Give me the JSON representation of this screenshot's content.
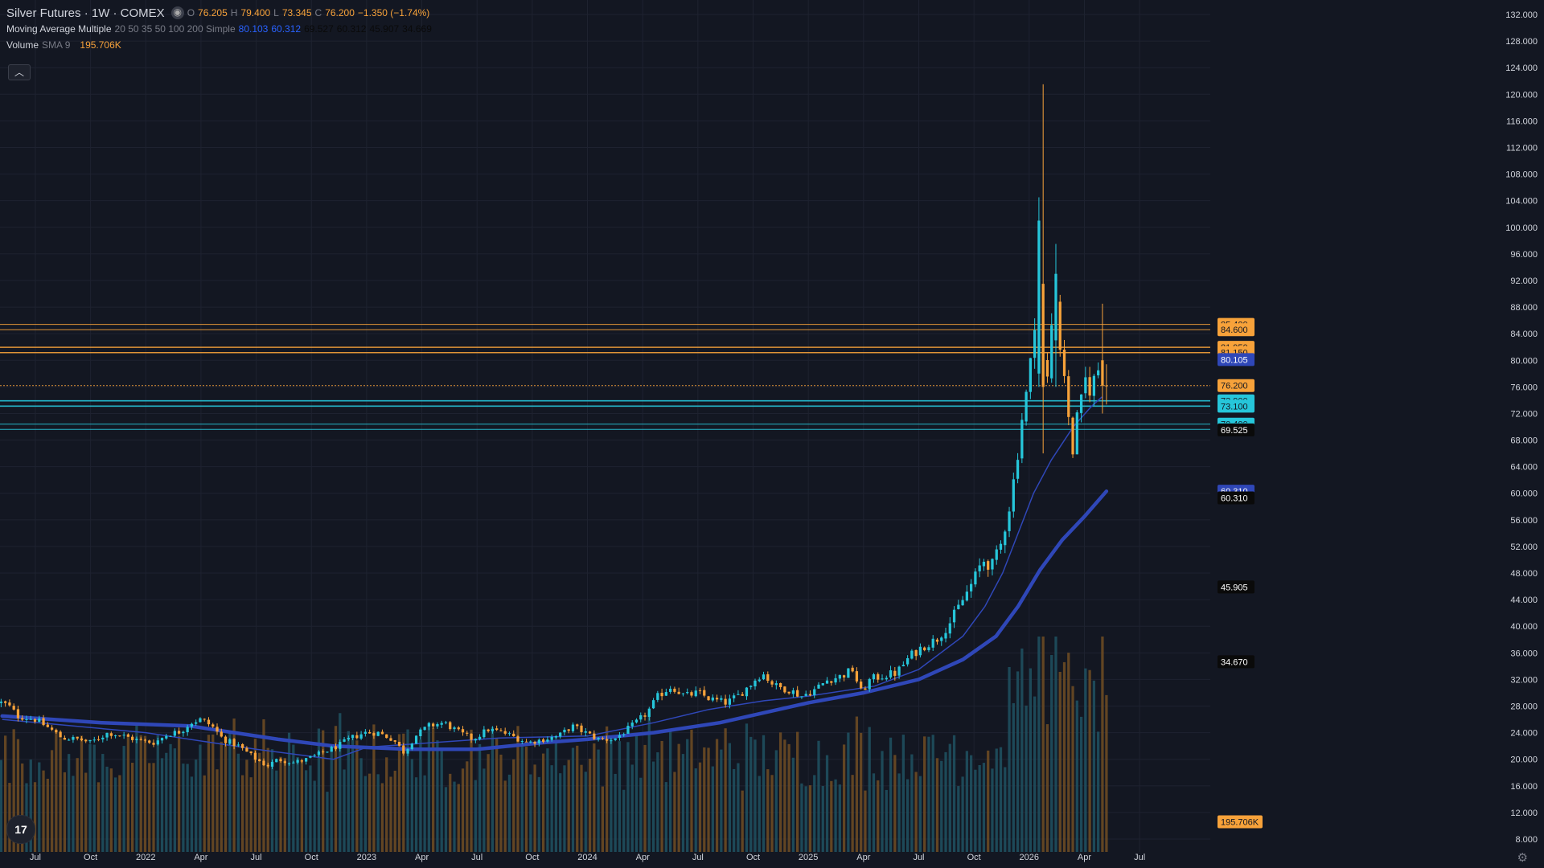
{
  "header": {
    "symbol_title": "Silver Futures · 1W · COMEX",
    "ohlc": {
      "o_label": "O",
      "o": "76.205",
      "h_label": "H",
      "h": "79.400",
      "l_label": "L",
      "l": "73.345",
      "c_label": "C",
      "c": "76.200",
      "change": "−1.350 (−1.74%)"
    },
    "ma_indicator": {
      "name": "Moving Average Multiple",
      "params": "20 50 35 50 100 200 Simple",
      "values": [
        "80.103",
        "60.312",
        "69.527",
        "60.312",
        "45.907",
        "34.669"
      ]
    },
    "volume_indicator": {
      "name": "Volume",
      "params": "SMA 9",
      "value": "195.706K"
    },
    "eye_icon": "eye-icon",
    "collapse_icon": "chevron-up-icon",
    "logo_text": "17",
    "settings_icon": "gear-icon"
  },
  "colors": {
    "background": "#131722",
    "up": "#26c6da",
    "down": "#f7a23a",
    "ma_thin": "#2f47b8",
    "ma_thick": "#2f47b8",
    "grid": "#1e2230",
    "axis_text": "#d1d4dc"
  },
  "chart_data": {
    "type": "candlestick",
    "title": "Silver Futures · 1W · COMEX",
    "ylim": [
      7,
      133
    ],
    "y_ticks": [
      "132.000",
      "128.000",
      "124.000",
      "120.000",
      "116.000",
      "112.000",
      "108.000",
      "104.000",
      "100.000",
      "96.000",
      "92.000",
      "88.000",
      "84.000",
      "80.000",
      "76.000",
      "72.000",
      "68.000",
      "64.000",
      "60.000",
      "56.000",
      "52.000",
      "48.000",
      "44.000",
      "40.000",
      "36.000",
      "32.000",
      "28.000",
      "24.000",
      "20.000",
      "16.000",
      "12.000",
      "8.000"
    ],
    "x_tick_labels": [
      "Jul",
      "Oct",
      "2022",
      "Apr",
      "Jul",
      "Oct",
      "2023",
      "Apr",
      "Jul",
      "Oct",
      "2024",
      "Apr",
      "Jul",
      "Oct",
      "2025",
      "Apr",
      "Jul",
      "Oct",
      "2026",
      "Apr",
      "Jul"
    ],
    "x_tick_values": [
      2021.5,
      2021.75,
      2022.0,
      2022.25,
      2022.5,
      2022.75,
      2023.0,
      2023.25,
      2023.5,
      2023.75,
      2024.0,
      2024.25,
      2024.5,
      2024.75,
      2025.0,
      2025.25,
      2025.5,
      2025.75,
      2026.0,
      2026.25,
      2026.5
    ],
    "xlim": [
      2021.34,
      2026.82
    ],
    "bar_interval_years": 0.01918,
    "close_anchors": [
      [
        2021.35,
        28.5
      ],
      [
        2021.38,
        28.0
      ],
      [
        2021.42,
        26.5
      ],
      [
        2021.5,
        26.0
      ],
      [
        2021.57,
        24.5
      ],
      [
        2021.62,
        23.2
      ],
      [
        2021.7,
        23.0
      ],
      [
        2021.75,
        22.5
      ],
      [
        2021.83,
        24.0
      ],
      [
        2021.9,
        23.5
      ],
      [
        2021.97,
        22.8
      ],
      [
        2022.04,
        22.5
      ],
      [
        2022.1,
        23.8
      ],
      [
        2022.16,
        24.2
      ],
      [
        2022.2,
        25.5
      ],
      [
        2022.25,
        26.0
      ],
      [
        2022.3,
        25.0
      ],
      [
        2022.35,
        23.0
      ],
      [
        2022.42,
        22.0
      ],
      [
        2022.5,
        20.0
      ],
      [
        2022.55,
        19.0
      ],
      [
        2022.6,
        20.0
      ],
      [
        2022.67,
        19.5
      ],
      [
        2022.73,
        20.0
      ],
      [
        2022.8,
        21.0
      ],
      [
        2022.87,
        22.0
      ],
      [
        2022.93,
        23.2
      ],
      [
        2022.99,
        24.0
      ],
      [
        2023.05,
        24.0
      ],
      [
        2023.12,
        23.0
      ],
      [
        2023.17,
        21.0
      ],
      [
        2023.22,
        23.5
      ],
      [
        2023.28,
        25.0
      ],
      [
        2023.35,
        25.5
      ],
      [
        2023.42,
        24.0
      ],
      [
        2023.48,
        23.0
      ],
      [
        2023.55,
        24.5
      ],
      [
        2023.62,
        24.0
      ],
      [
        2023.68,
        23.2
      ],
      [
        2023.73,
        22.5
      ],
      [
        2023.8,
        23.0
      ],
      [
        2023.87,
        23.5
      ],
      [
        2023.93,
        25.0
      ],
      [
        2023.99,
        24.0
      ],
      [
        2024.05,
        23.0
      ],
      [
        2024.12,
        23.0
      ],
      [
        2024.17,
        24.2
      ],
      [
        2024.22,
        25.5
      ],
      [
        2024.27,
        27.0
      ],
      [
        2024.32,
        29.5
      ],
      [
        2024.38,
        31.0
      ],
      [
        2024.44,
        29.5
      ],
      [
        2024.5,
        30.0
      ],
      [
        2024.56,
        29.0
      ],
      [
        2024.63,
        28.5
      ],
      [
        2024.68,
        29.5
      ],
      [
        2024.73,
        31.0
      ],
      [
        2024.79,
        33.0
      ],
      [
        2024.85,
        31.0
      ],
      [
        2024.91,
        30.5
      ],
      [
        2024.97,
        29.5
      ],
      [
        2025.03,
        30.5
      ],
      [
        2025.09,
        32.0
      ],
      [
        2025.15,
        32.5
      ],
      [
        2025.2,
        33.5
      ],
      [
        2025.24,
        30.0
      ],
      [
        2025.28,
        32.0
      ],
      [
        2025.33,
        32.5
      ],
      [
        2025.4,
        33.0
      ],
      [
        2025.46,
        35.5
      ],
      [
        2025.52,
        37.0
      ],
      [
        2025.58,
        38.0
      ],
      [
        2025.64,
        40.5
      ],
      [
        2025.7,
        44.0
      ],
      [
        2025.75,
        47.0
      ],
      [
        2025.79,
        50.0
      ],
      [
        2025.83,
        49.0
      ],
      [
        2025.87,
        52.0
      ],
      [
        2025.91,
        58.0
      ],
      [
        2025.94,
        64.0
      ],
      [
        2025.97,
        72.0
      ],
      [
        2026.0,
        77.0
      ],
      [
        2026.02,
        85.0
      ],
      [
        2026.04,
        90.0
      ],
      [
        2026.06,
        80.0
      ],
      [
        2026.08,
        76.0
      ],
      [
        2026.1,
        85.0
      ],
      [
        2026.12,
        90.0
      ],
      [
        2026.14,
        82.0
      ],
      [
        2026.16,
        78.0
      ],
      [
        2026.18,
        70.0
      ],
      [
        2026.2,
        66.0
      ],
      [
        2026.22,
        72.0
      ],
      [
        2026.24,
        74.0
      ],
      [
        2026.26,
        78.0
      ],
      [
        2026.28,
        75.0
      ],
      [
        2026.3,
        78.0
      ],
      [
        2026.32,
        79.0
      ],
      [
        2026.35,
        76.2
      ]
    ],
    "last_bar": {
      "open": 76.205,
      "high": 79.4,
      "low": 73.345,
      "close": 76.2
    },
    "notable_bars": [
      {
        "x": 2026.065,
        "open": 91.5,
        "high": 121.5,
        "low": 66.0,
        "close": 76.0
      },
      {
        "x": 2026.04,
        "open": 78.0,
        "high": 104.5,
        "low": 76.0,
        "close": 101.0
      },
      {
        "x": 2026.12,
        "open": 83.0,
        "high": 97.5,
        "low": 76.0,
        "close": 93.0
      },
      {
        "x": 2026.33,
        "open": 80.0,
        "high": 88.5,
        "low": 72.0,
        "close": 76.2
      }
    ],
    "sma_thin_anchors": [
      [
        2021.35,
        26.0
      ],
      [
        2022.0,
        24.0
      ],
      [
        2022.5,
        21.5
      ],
      [
        2022.85,
        20.0
      ],
      [
        2023.0,
        21.8
      ],
      [
        2023.3,
        22.5
      ],
      [
        2023.6,
        23.2
      ],
      [
        2024.0,
        23.5
      ],
      [
        2024.3,
        25.5
      ],
      [
        2024.55,
        27.5
      ],
      [
        2024.8,
        28.8
      ],
      [
        2025.0,
        29.5
      ],
      [
        2025.3,
        31.0
      ],
      [
        2025.5,
        33.5
      ],
      [
        2025.7,
        38.5
      ],
      [
        2025.8,
        43.0
      ],
      [
        2025.88,
        48.0
      ],
      [
        2025.95,
        54.0
      ],
      [
        2026.02,
        60.0
      ],
      [
        2026.1,
        65.0
      ],
      [
        2026.2,
        70.0
      ],
      [
        2026.28,
        73.0
      ],
      [
        2026.33,
        74.5
      ]
    ],
    "sma_thick_anchors": [
      [
        2021.35,
        26.5
      ],
      [
        2021.8,
        25.5
      ],
      [
        2022.2,
        25.0
      ],
      [
        2022.6,
        23.0
      ],
      [
        2022.85,
        22.0
      ],
      [
        2023.2,
        21.5
      ],
      [
        2023.5,
        21.5
      ],
      [
        2023.8,
        22.5
      ],
      [
        2024.0,
        23.0
      ],
      [
        2024.3,
        24.0
      ],
      [
        2024.6,
        25.5
      ],
      [
        2024.8,
        27.0
      ],
      [
        2025.0,
        28.5
      ],
      [
        2025.25,
        30.0
      ],
      [
        2025.5,
        32.0
      ],
      [
        2025.7,
        35.0
      ],
      [
        2025.85,
        38.5
      ],
      [
        2025.95,
        43.0
      ],
      [
        2026.05,
        48.5
      ],
      [
        2026.15,
        53.0
      ],
      [
        2026.25,
        56.5
      ],
      [
        2026.35,
        60.31
      ]
    ],
    "volume_scale_max_k": 500,
    "volume_sma9_k": 195.706,
    "price_lines": [
      {
        "value": 85.4,
        "color": "#f7a23a"
      },
      {
        "value": 84.6,
        "color": "#f7a23a"
      },
      {
        "value": 81.95,
        "color": "#f7a23a"
      },
      {
        "value": 81.15,
        "color": "#f7a23a"
      },
      {
        "value": 76.2,
        "color": "#f7a23a"
      },
      {
        "value": 73.9,
        "color": "#26c6da"
      },
      {
        "value": 73.1,
        "color": "#26c6da"
      },
      {
        "value": 70.4,
        "color": "#26c6da"
      },
      {
        "value": 69.6,
        "color": "#26c6da"
      }
    ],
    "price_badges": [
      {
        "value": 85.4,
        "label": "85.400",
        "bg": "#f7a23a",
        "fg": "#131722"
      },
      {
        "value": 84.6,
        "label": "84.600",
        "bg": "#f7a23a",
        "fg": "#131722"
      },
      {
        "value": 81.95,
        "label": "81.950",
        "bg": "#f7a23a",
        "fg": "#131722"
      },
      {
        "value": 81.15,
        "label": "81.150",
        "bg": "#f7a23a",
        "fg": "#131722"
      },
      {
        "value": 80.105,
        "label": "80.105",
        "bg": "#2f47b8",
        "fg": "#ffffff"
      },
      {
        "value": 76.2,
        "label": "76.200",
        "bg": "#f7a23a",
        "fg": "#131722"
      },
      {
        "value": 73.9,
        "label": "73.900",
        "bg": "#26c6da",
        "fg": "#131722"
      },
      {
        "value": 73.1,
        "label": "73.100",
        "bg": "#26c6da",
        "fg": "#131722"
      },
      {
        "value": 70.4,
        "label": "70.400",
        "bg": "#26c6da",
        "fg": "#131722"
      },
      {
        "value": 69.6,
        "label": "69.600",
        "bg": "#26c6da",
        "fg": "#131722"
      },
      {
        "value": 69.525,
        "label": "69.525",
        "bg": "#0a0a0a",
        "fg": "#ffffff"
      },
      {
        "value": 60.31,
        "label": "60.310",
        "bg": "#2f47b8",
        "fg": "#ffffff"
      },
      {
        "value": 59.3,
        "label": "60.310",
        "bg": "#0a0a0a",
        "fg": "#ffffff"
      },
      {
        "value": 45.905,
        "label": "45.905",
        "bg": "#0a0a0a",
        "fg": "#ffffff"
      },
      {
        "value": 34.67,
        "label": "34.670",
        "bg": "#0a0a0a",
        "fg": "#ffffff"
      },
      {
        "value": 10.6,
        "label": "195.706K",
        "bg": "#f7a23a",
        "fg": "#131722"
      }
    ]
  }
}
